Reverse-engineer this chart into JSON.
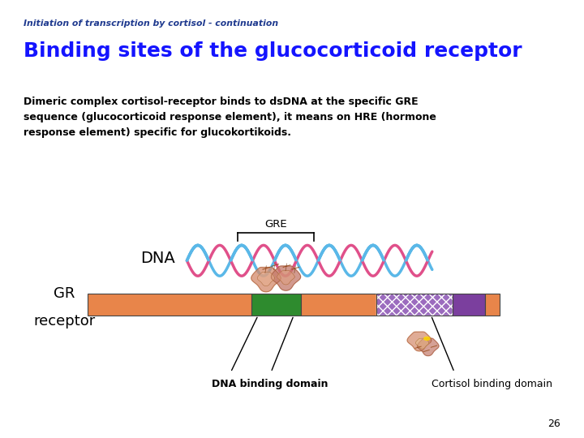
{
  "bg_color": "#ffffff",
  "subtitle": "Initiation of transcription by cortisol - continuation",
  "subtitle_color": "#1F3A8F",
  "title": "Binding sites of the glucocorticoid receptor",
  "title_color": "#1414FF",
  "body_line1": "Dimeric complex cortisol-receptor binds to dsDNA at the specific GRE",
  "body_line2": "sequence (glucocorticoid response element), it means on HRE (hormone",
  "body_line3": "response element) specific for glucokortikoids.",
  "body_color": "#000000",
  "page_number": "26",
  "gre_label": "GRE",
  "dna_label": "DNA",
  "gr_label1": "GR",
  "gr_label2": "receptor",
  "dna_binding_label": "DNA binding domain",
  "cortisol_binding_label": "Cortisol binding domain",
  "bar_color_orange": "#E8854A",
  "bar_color_green": "#2E8B2E",
  "bar_color_purple_hatch": "#9B6BBE",
  "bar_color_purple_solid": "#7B3F9E",
  "dna_color_pink": "#E0508A",
  "dna_color_blue": "#5AB8E8"
}
